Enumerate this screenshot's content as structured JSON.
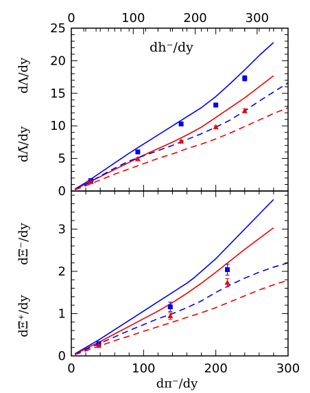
{
  "chart_data": [
    {
      "type": "line",
      "title": "",
      "annotation": "dh⁻/dy",
      "xlabel": "",
      "ylabels": [
        "dΛ/dy",
        "dΛ̄/dy"
      ],
      "top_axis": {
        "xlim": [
          0,
          350
        ],
        "ticks": [
          0,
          100,
          200,
          300
        ],
        "tick_labels": [
          "0",
          "100",
          "200",
          "300"
        ]
      },
      "xlim": [
        0,
        300
      ],
      "ylim": [
        0,
        25
      ],
      "y_ticks": [
        0,
        5,
        10,
        15,
        20,
        25
      ],
      "y_tick_labels": [
        "0",
        "5",
        "10",
        "15",
        "20",
        "25"
      ],
      "series": [
        {
          "color": "#0000ee",
          "style": "solid",
          "x": [
            5,
            20,
            40,
            60,
            80,
            100,
            120,
            140,
            160,
            180,
            200,
            220,
            240,
            260,
            280
          ],
          "y": [
            0.3,
            1.3,
            2.8,
            4.3,
            5.8,
            7.2,
            8.6,
            10.0,
            11.4,
            12.8,
            14.5,
            16.5,
            18.6,
            20.8,
            22.8
          ]
        },
        {
          "color": "#ee0000",
          "style": "solid",
          "x": [
            5,
            20,
            40,
            60,
            80,
            100,
            120,
            140,
            160,
            180,
            200,
            220,
            240,
            260,
            280
          ],
          "y": [
            0.2,
            1.1,
            2.2,
            3.3,
            4.4,
            5.5,
            6.5,
            7.5,
            8.6,
            9.8,
            11.3,
            12.8,
            14.3,
            16.0,
            17.7
          ]
        },
        {
          "color": "#0000ee",
          "style": "dashed",
          "x": [
            5,
            20,
            40,
            60,
            80,
            100,
            120,
            140,
            160,
            180,
            200,
            220,
            240,
            260,
            280,
            300
          ],
          "y": [
            0.2,
            1.0,
            2.3,
            3.5,
            4.6,
            5.4,
            6.2,
            7.0,
            7.9,
            8.8,
            9.8,
            10.9,
            12.3,
            13.8,
            15.2,
            16.6
          ]
        },
        {
          "color": "#ee0000",
          "style": "dashed",
          "x": [
            5,
            20,
            40,
            60,
            80,
            100,
            120,
            140,
            160,
            180,
            200,
            220,
            240,
            260,
            280,
            300
          ],
          "y": [
            0.2,
            0.8,
            1.7,
            2.6,
            3.4,
            4.2,
            5.0,
            5.7,
            6.5,
            7.2,
            8.0,
            8.9,
            9.9,
            10.9,
            11.9,
            12.8
          ]
        },
        {
          "color": "#0000ee",
          "style": "markers",
          "marker": "square",
          "x": [
            27,
            92,
            152,
            200,
            240
          ],
          "y": [
            1.6,
            6.0,
            10.3,
            13.2,
            17.3
          ],
          "yerr": [
            0.2,
            0.3,
            0.3,
            0.3,
            0.4
          ]
        },
        {
          "color": "#ee0000",
          "style": "markers",
          "marker": "triangle",
          "x": [
            27,
            92,
            152,
            200,
            240
          ],
          "y": [
            1.4,
            4.9,
            7.6,
            9.8,
            12.3
          ],
          "yerr": [
            0.1,
            0.2,
            0.2,
            0.2,
            0.3
          ]
        }
      ]
    },
    {
      "type": "line",
      "title": "",
      "xlabel": "dπ⁻/dy",
      "ylabels": [
        "dΞ⁻/dy",
        "dΞ̄⁺/dy"
      ],
      "xlim": [
        0,
        300
      ],
      "ylim": [
        0,
        3.9
      ],
      "x_ticks": [
        0,
        100,
        200,
        300
      ],
      "x_tick_labels": [
        "0",
        "100",
        "200",
        "300"
      ],
      "y_ticks": [
        0,
        1,
        2,
        3
      ],
      "y_tick_labels": [
        "0",
        "1",
        "2",
        "3"
      ],
      "series": [
        {
          "color": "#0000ee",
          "style": "solid",
          "x": [
            5,
            20,
            40,
            60,
            80,
            100,
            120,
            140,
            160,
            170,
            200,
            240,
            280
          ],
          "y": [
            0.05,
            0.2,
            0.4,
            0.62,
            0.84,
            1.06,
            1.28,
            1.5,
            1.72,
            1.85,
            2.3,
            3.0,
            3.7
          ]
        },
        {
          "color": "#ee0000",
          "style": "solid",
          "x": [
            5,
            20,
            40,
            60,
            80,
            100,
            120,
            140,
            160,
            180,
            200,
            240,
            280
          ],
          "y": [
            0.04,
            0.17,
            0.34,
            0.52,
            0.7,
            0.88,
            1.06,
            1.26,
            1.48,
            1.72,
            1.98,
            2.52,
            3.03
          ]
        },
        {
          "color": "#0000ee",
          "style": "dashed",
          "x": [
            5,
            20,
            40,
            60,
            80,
            100,
            120,
            140,
            160,
            180,
            200,
            220,
            240,
            260,
            280,
            300
          ],
          "y": [
            0.04,
            0.15,
            0.3,
            0.45,
            0.6,
            0.74,
            0.88,
            1.0,
            1.14,
            1.3,
            1.5,
            1.68,
            1.84,
            1.98,
            2.1,
            2.2
          ]
        },
        {
          "color": "#ee0000",
          "style": "dashed",
          "x": [
            5,
            20,
            40,
            60,
            80,
            100,
            120,
            140,
            160,
            180,
            200,
            220,
            240,
            260,
            280,
            300
          ],
          "y": [
            0.03,
            0.12,
            0.24,
            0.36,
            0.47,
            0.58,
            0.69,
            0.8,
            0.91,
            1.02,
            1.14,
            1.28,
            1.42,
            1.56,
            1.68,
            1.79
          ]
        },
        {
          "color": "#0000ee",
          "style": "markers",
          "marker": "square",
          "x": [
            38,
            137,
            216
          ],
          "y": [
            0.29,
            1.16,
            2.04
          ],
          "yerr": [
            0.04,
            0.11,
            0.13
          ]
        },
        {
          "color": "#ee0000",
          "style": "markers",
          "marker": "triangle",
          "x": [
            38,
            137,
            216
          ],
          "y": [
            0.24,
            0.94,
            1.73
          ],
          "yerr": [
            0.03,
            0.08,
            0.1
          ]
        }
      ]
    }
  ]
}
